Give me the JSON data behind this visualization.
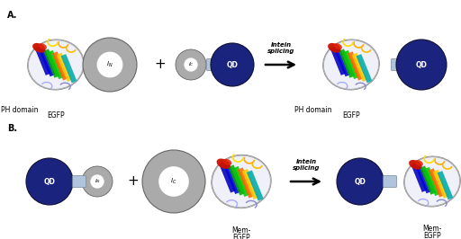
{
  "figsize": [
    5.12,
    2.66
  ],
  "dpi": 100,
  "bg_color": "#ffffff",
  "panel_A_label": "A.",
  "panel_B_label": "B.",
  "qd_color": "#1a237e",
  "ic_color": "#aaaaaa",
  "in_color": "#aaaaaa",
  "linker_color": "#b0c4de",
  "linker_edge": "#778899",
  "label_fontsize": 5.5,
  "panel_fontsize": 7,
  "intein_label_size": 4.5,
  "plus_size": 9,
  "arrow_label": "Intein\nsplicing"
}
